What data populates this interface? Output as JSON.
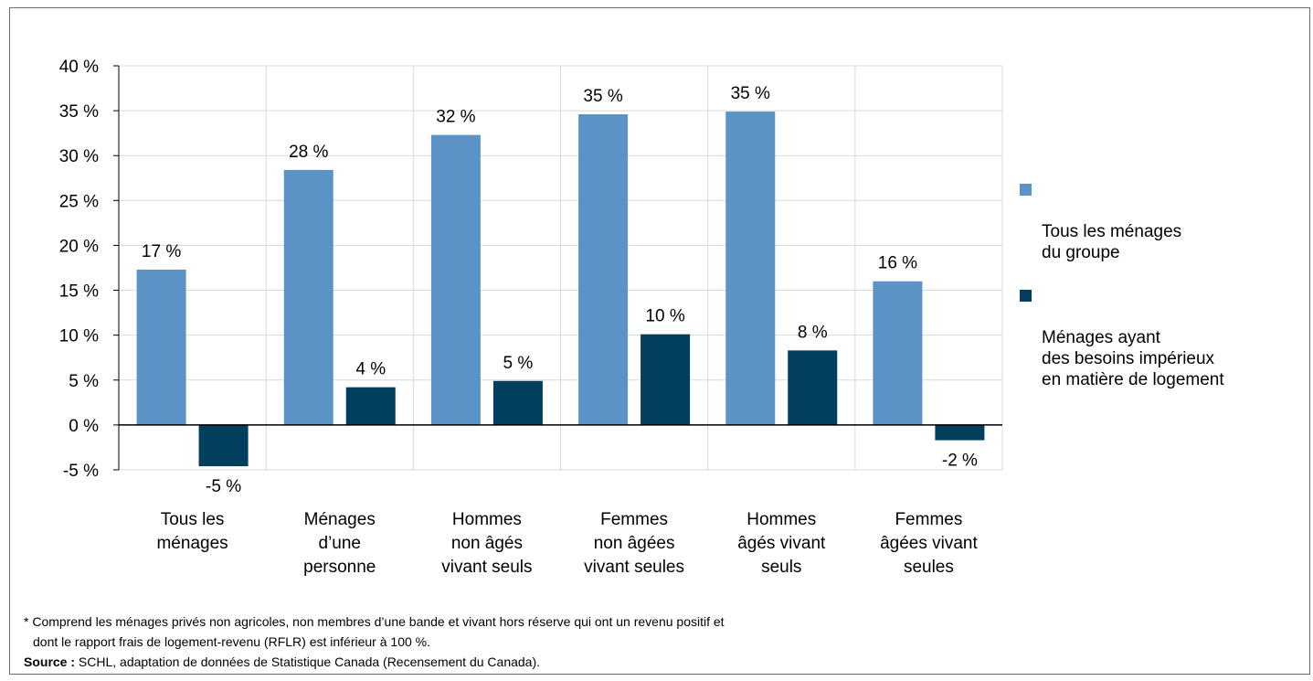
{
  "chart_data": {
    "type": "bar",
    "categories": [
      [
        "Tous les",
        "ménages"
      ],
      [
        "Ménages",
        "d’une",
        "personne"
      ],
      [
        "Hommes",
        "non âgés",
        "vivant seuls"
      ],
      [
        "Femmes",
        "non âgées",
        "vivant seules"
      ],
      [
        "Hommes",
        "âgés vivant",
        "seuls"
      ],
      [
        "Femmes",
        "âgées vivant",
        "seules"
      ]
    ],
    "series": [
      {
        "name": "Tous les ménages\ndu groupe",
        "color": "#5B93C7",
        "values": [
          17.3,
          28.4,
          32.3,
          34.6,
          34.9,
          16.0
        ],
        "labels": [
          "17 %",
          "28 %",
          "32 %",
          "35 %",
          "35 %",
          "16 %"
        ]
      },
      {
        "name": "Ménages ayant\ndes besoins impérieux\nen matière de logement",
        "color": "#023F5F",
        "values": [
          -4.6,
          4.2,
          4.9,
          10.1,
          8.3,
          -1.7
        ],
        "labels": [
          "-5 %",
          "4 %",
          "5 %",
          "10 %",
          "8 %",
          "-2 %"
        ]
      }
    ],
    "y_ticks": [
      "40 %",
      "35 %",
      "30 %",
      "25 %",
      "20 %",
      "15 %",
      "10 %",
      "5 %",
      "0 %",
      "-5 %"
    ],
    "ylim": [
      -5,
      40
    ],
    "grid": true,
    "legend_position": "right"
  },
  "notes": {
    "footnote_line1": "* Comprend les ménages privés non agricoles, non membres d’une bande et vivant hors réserve qui ont un revenu positif et",
    "footnote_line2": "dont le rapport frais de logement-revenu (RFLR) est inférieur à 100 %.",
    "source_label": "Source :",
    "source_text": " SCHL, adaptation de données de Statistique Canada (Recensement du Canada)."
  }
}
